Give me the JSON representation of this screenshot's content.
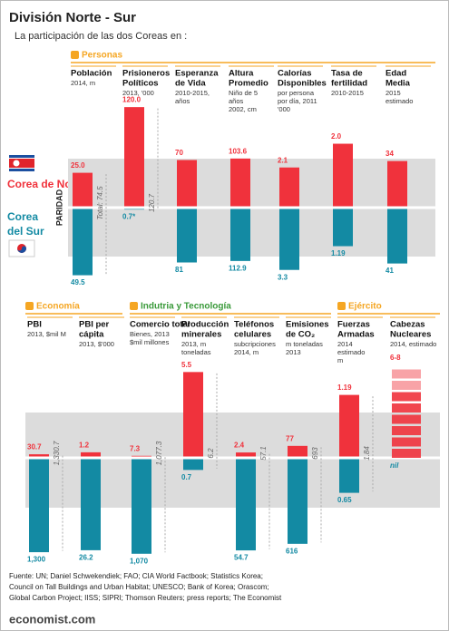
{
  "header": {
    "title": "División Norte - Sur",
    "subtitle": "La participación de las dos Coreas en :"
  },
  "legend": {
    "north": [
      "Corea de Norte"
    ],
    "south": [
      "Corea",
      "del Sur"
    ]
  },
  "axis_label": "PARIDAD",
  "rows": [
    {
      "sections": [
        {
          "heading": "Personas",
          "columns": [
            {
              "label": [
                "Población"
              ],
              "sublabel": [
                "2014, m"
              ],
              "north": 25,
              "north_label": "25.0",
              "south": 49.5,
              "total": "Total: 74.5"
            },
            {
              "label": [
                "Prisioneros",
                "Políticos"
              ],
              "sublabel": [
                "2013, '000"
              ],
              "north": 120,
              "north_label": "120.0",
              "south": 0.7,
              "south_label": "0.7*",
              "total": "120.7"
            },
            {
              "label": [
                "Esperanza",
                "de Vida"
              ],
              "sublabel": [
                "2010-2015,",
                "años"
              ],
              "north": 70,
              "south": 81
            },
            {
              "label": [
                "Altura",
                "Promedio"
              ],
              "sublabel": [
                "Niño de 5",
                "años",
                "2002, cm"
              ],
              "north": 103.6,
              "south": 112.9
            },
            {
              "label": [
                "Calorías",
                "Disponibles"
              ],
              "sublabel": [
                "por persona",
                "por día, 2011",
                "'000"
              ],
              "north": 2.1,
              "south": 3.3
            },
            {
              "label": [
                "Tasa de",
                "fertilidad"
              ],
              "sublabel": [
                "2010-2015"
              ],
              "north": 2,
              "north_label": "2.0",
              "south": 1.19
            },
            {
              "label": [
                "Edad",
                "Media"
              ],
              "sublabel": [
                "2015",
                "estimado"
              ],
              "north": 34,
              "south": 41
            }
          ]
        }
      ]
    },
    {
      "sections": [
        {
          "heading": "Economía",
          "columns": [
            {
              "label": [
                "PBI"
              ],
              "sublabel": [
                "2013, $mil M"
              ],
              "north": 30.7,
              "south": 1300,
              "south_label": "1,300",
              "total": "1,330.7"
            },
            {
              "label": [
                "PBI per",
                "cápita"
              ],
              "sublabel": [
                "2013, $'000"
              ],
              "north": 1.2,
              "south": 26.2
            }
          ]
        },
        {
          "heading": "Indutria y Tecnología",
          "columns": [
            {
              "label": [
                "Comercio total"
              ],
              "sublabel": [
                "Bienes, 2013",
                "$mil millones"
              ],
              "north": 7.3,
              "south": 1070,
              "south_label": "1,070",
              "total": "1,077.3"
            },
            {
              "label": [
                "Producción",
                "minerales"
              ],
              "sublabel": [
                "2013, m",
                "toneladas"
              ],
              "north": 5.5,
              "south": 0.7,
              "total": "6.2"
            },
            {
              "label": [
                "Teléfonos",
                "celulares"
              ],
              "sublabel": [
                "subcripciones",
                "2014, m"
              ],
              "north": 2.4,
              "south": 54.7,
              "total": "57.1"
            },
            {
              "label": [
                "Emisiones",
                "de CO₂"
              ],
              "sublabel": [
                "m toneladas",
                "2013"
              ],
              "north": 77,
              "south": 616,
              "total": "693"
            }
          ]
        },
        {
          "heading": "Ejército",
          "columns": [
            {
              "label": [
                "Fuerzas",
                "Armadas"
              ],
              "sublabel": [
                "2014",
                "estimado",
                "m"
              ],
              "north": 1.19,
              "south": 0.65,
              "total": "1.84"
            },
            {
              "label": [
                "Cabezas",
                "Nucleares"
              ],
              "sublabel": [
                "2014, estimado"
              ],
              "north": null,
              "north_label": "6-8",
              "south": null,
              "south_label": "nil"
            }
          ]
        }
      ]
    }
  ],
  "footer": {
    "source": [
      "Fuente: UN; Daniel Schwekendiek; FAO; CIA World Factbook; Statistics Korea;",
      "Council on Tall Buildings and Urban Habitat; UNESCO; Bank of Korea; Orascom;",
      "Global Carbon Project; IISS; SIPRI; Thomson Reuters; press reports; The Economist"
    ],
    "site": "economist.com"
  }
}
